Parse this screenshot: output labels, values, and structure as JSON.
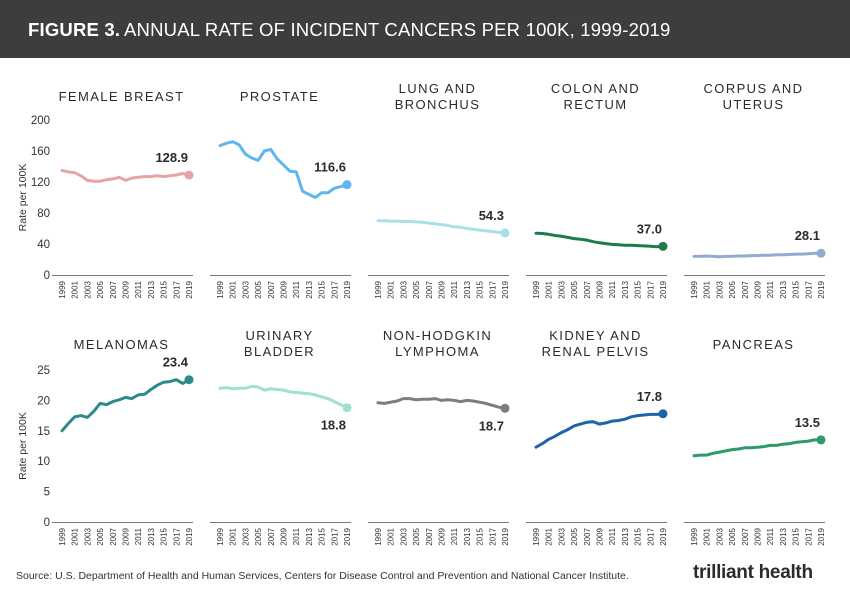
{
  "header": {
    "figure_label": "FIGURE 3.",
    "title": "ANNUAL RATE OF INCIDENT CANCERS PER 100K, 1999-2019"
  },
  "footer": {
    "source": "Source: U.S. Department of Health and Human Services, Centers for Disease Control and Prevention and National Cancer Institute.",
    "logo": "trilliant health"
  },
  "chart_data": [
    {
      "type": "line",
      "title": "FEMALE BREAST",
      "ylabel": "Rate per 100K",
      "yticks": [
        0,
        40,
        80,
        120,
        160,
        200
      ],
      "ylim": [
        0,
        200
      ],
      "color": "#e8a3a5",
      "x": [
        "1999",
        "2000",
        "2001",
        "2002",
        "2003",
        "2004",
        "2005",
        "2006",
        "2007",
        "2008",
        "2009",
        "2010",
        "2011",
        "2012",
        "2013",
        "2014",
        "2015",
        "2016",
        "2017",
        "2018",
        "2019"
      ],
      "values": [
        135,
        133,
        132,
        128,
        122,
        121,
        121,
        123,
        124,
        126,
        122,
        125,
        126,
        127,
        127,
        128,
        127,
        128,
        129,
        131,
        128.9
      ],
      "end_label": "128.9"
    },
    {
      "type": "line",
      "title": "PROSTATE",
      "ylabel": "",
      "yticks": [
        0,
        40,
        80,
        120,
        160,
        200
      ],
      "ylim": [
        0,
        200
      ],
      "color": "#5fb6ef",
      "x": [
        "1999",
        "2000",
        "2001",
        "2002",
        "2003",
        "2004",
        "2005",
        "2006",
        "2007",
        "2008",
        "2009",
        "2010",
        "2011",
        "2012",
        "2013",
        "2014",
        "2015",
        "2016",
        "2017",
        "2018",
        "2019"
      ],
      "values": [
        167,
        170,
        172,
        168,
        156,
        151,
        148,
        160,
        162,
        150,
        142,
        134,
        133,
        108,
        104,
        100,
        106,
        106,
        112,
        114,
        116.6
      ],
      "end_label": "116.6"
    },
    {
      "type": "line",
      "title": "LUNG AND BRONCHUS",
      "ylabel": "",
      "yticks": [
        0,
        40,
        80,
        120,
        160,
        200
      ],
      "ylim": [
        0,
        200
      ],
      "color": "#a9dfe8",
      "x": [
        "1999",
        "2000",
        "2001",
        "2002",
        "2003",
        "2004",
        "2005",
        "2006",
        "2007",
        "2008",
        "2009",
        "2010",
        "2011",
        "2012",
        "2013",
        "2014",
        "2015",
        "2016",
        "2017",
        "2018",
        "2019"
      ],
      "values": [
        70,
        70,
        69.5,
        69.5,
        69,
        69,
        68.5,
        68,
        67,
        66,
        65,
        64,
        62,
        61.5,
        60,
        59,
        58,
        57,
        56,
        55,
        54.3
      ],
      "end_label": "54.3"
    },
    {
      "type": "line",
      "title": "COLON AND RECTUM",
      "ylabel": "",
      "yticks": [
        0,
        40,
        80,
        120,
        160,
        200
      ],
      "ylim": [
        0,
        200
      ],
      "color": "#1e7b48",
      "x": [
        "1999",
        "2000",
        "2001",
        "2002",
        "2003",
        "2004",
        "2005",
        "2006",
        "2007",
        "2008",
        "2009",
        "2010",
        "2011",
        "2012",
        "2013",
        "2014",
        "2015",
        "2016",
        "2017",
        "2018",
        "2019"
      ],
      "values": [
        54,
        53.5,
        52.5,
        51,
        50,
        48.5,
        47,
        46,
        45,
        43,
        41.5,
        40.5,
        39.5,
        39,
        38.5,
        38.5,
        38,
        37.5,
        37,
        36.5,
        37
      ],
      "end_label": "37.0"
    },
    {
      "type": "line",
      "title": "CORPUS AND UTERUS",
      "ylabel": "",
      "yticks": [
        0,
        40,
        80,
        120,
        160,
        200
      ],
      "ylim": [
        0,
        200
      ],
      "color": "#93abd2",
      "x": [
        "1999",
        "2000",
        "2001",
        "2002",
        "2003",
        "2004",
        "2005",
        "2006",
        "2007",
        "2008",
        "2009",
        "2010",
        "2011",
        "2012",
        "2013",
        "2014",
        "2015",
        "2016",
        "2017",
        "2018",
        "2019"
      ],
      "values": [
        24,
        24,
        24.5,
        24,
        23.5,
        24,
        24,
        24.5,
        24.5,
        25,
        25,
        25.5,
        25.5,
        26,
        26,
        26.5,
        27,
        27,
        27.5,
        28,
        28.1
      ],
      "end_label": "28.1"
    },
    {
      "type": "line",
      "title": "MELANOMAS",
      "ylabel": "Rate per 100K",
      "yticks": [
        0,
        5,
        10,
        15,
        20,
        25
      ],
      "ylim": [
        0,
        25
      ],
      "color": "#2e8a8a",
      "x": [
        "1999",
        "2000",
        "2001",
        "2002",
        "2003",
        "2004",
        "2005",
        "2006",
        "2007",
        "2008",
        "2009",
        "2010",
        "2011",
        "2012",
        "2013",
        "2014",
        "2015",
        "2016",
        "2017",
        "2018",
        "2019"
      ],
      "values": [
        15,
        16.2,
        17.3,
        17.5,
        17.2,
        18.2,
        19.5,
        19.3,
        19.8,
        20.1,
        20.5,
        20.3,
        20.9,
        21.0,
        21.8,
        22.5,
        23,
        23.1,
        23.4,
        22.8,
        23.4
      ],
      "end_label": "23.4"
    },
    {
      "type": "line",
      "title": "URINARY BLADDER",
      "ylabel": "",
      "yticks": [
        0,
        5,
        10,
        15,
        20,
        25
      ],
      "ylim": [
        0,
        25
      ],
      "color": "#9ee3c5",
      "x": [
        "1999",
        "2000",
        "2001",
        "2002",
        "2003",
        "2004",
        "2005",
        "2006",
        "2007",
        "2008",
        "2009",
        "2010",
        "2011",
        "2012",
        "2013",
        "2014",
        "2015",
        "2016",
        "2017",
        "2018",
        "2019"
      ],
      "values": [
        22,
        22.1,
        21.9,
        22.0,
        22.0,
        22.3,
        22.2,
        21.7,
        21.9,
        21.8,
        21.7,
        21.4,
        21.3,
        21.2,
        21.1,
        20.9,
        20.6,
        20.3,
        19.8,
        19.3,
        18.8
      ],
      "end_label": "18.8"
    },
    {
      "type": "line",
      "title": "NON-HODGKIN LYMPHOMA",
      "ylabel": "",
      "yticks": [
        0,
        5,
        10,
        15,
        20,
        25
      ],
      "ylim": [
        0,
        25
      ],
      "color": "#7d7d7d",
      "x": [
        "1999",
        "2000",
        "2001",
        "2002",
        "2003",
        "2004",
        "2005",
        "2006",
        "2007",
        "2008",
        "2009",
        "2010",
        "2011",
        "2012",
        "2013",
        "2014",
        "2015",
        "2016",
        "2017",
        "2018",
        "2019"
      ],
      "values": [
        19.6,
        19.5,
        19.7,
        19.9,
        20.3,
        20.3,
        20.1,
        20.2,
        20.2,
        20.3,
        20.0,
        20.1,
        20.0,
        19.8,
        20.0,
        19.9,
        19.7,
        19.5,
        19.2,
        18.9,
        18.7
      ],
      "end_label": "18.7"
    },
    {
      "type": "line",
      "title": "KIDNEY AND RENAL PELVIS",
      "ylabel": "",
      "yticks": [
        0,
        5,
        10,
        15,
        20,
        25
      ],
      "ylim": [
        0,
        25
      ],
      "color": "#1e64a8",
      "x": [
        "1999",
        "2000",
        "2001",
        "2002",
        "2003",
        "2004",
        "2005",
        "2006",
        "2007",
        "2008",
        "2009",
        "2010",
        "2011",
        "2012",
        "2013",
        "2014",
        "2015",
        "2016",
        "2017",
        "2018",
        "2019"
      ],
      "values": [
        12.3,
        12.9,
        13.6,
        14.1,
        14.7,
        15.2,
        15.8,
        16.1,
        16.4,
        16.5,
        16.1,
        16.3,
        16.6,
        16.7,
        16.9,
        17.3,
        17.5,
        17.6,
        17.7,
        17.7,
        17.8
      ],
      "end_label": "17.8"
    },
    {
      "type": "line",
      "title": "PANCREAS",
      "ylabel": "",
      "yticks": [
        0,
        5,
        10,
        15,
        20,
        25
      ],
      "ylim": [
        0,
        25
      ],
      "color": "#2e9a6a",
      "x": [
        "1999",
        "2000",
        "2001",
        "2002",
        "2003",
        "2004",
        "2005",
        "2006",
        "2007",
        "2008",
        "2009",
        "2010",
        "2011",
        "2012",
        "2013",
        "2014",
        "2015",
        "2016",
        "2017",
        "2018",
        "2019"
      ],
      "values": [
        10.9,
        11.0,
        11.0,
        11.3,
        11.5,
        11.7,
        11.9,
        12.0,
        12.2,
        12.2,
        12.3,
        12.4,
        12.6,
        12.6,
        12.8,
        12.9,
        13.1,
        13.2,
        13.3,
        13.5,
        13.5
      ],
      "end_label": "13.5"
    }
  ]
}
